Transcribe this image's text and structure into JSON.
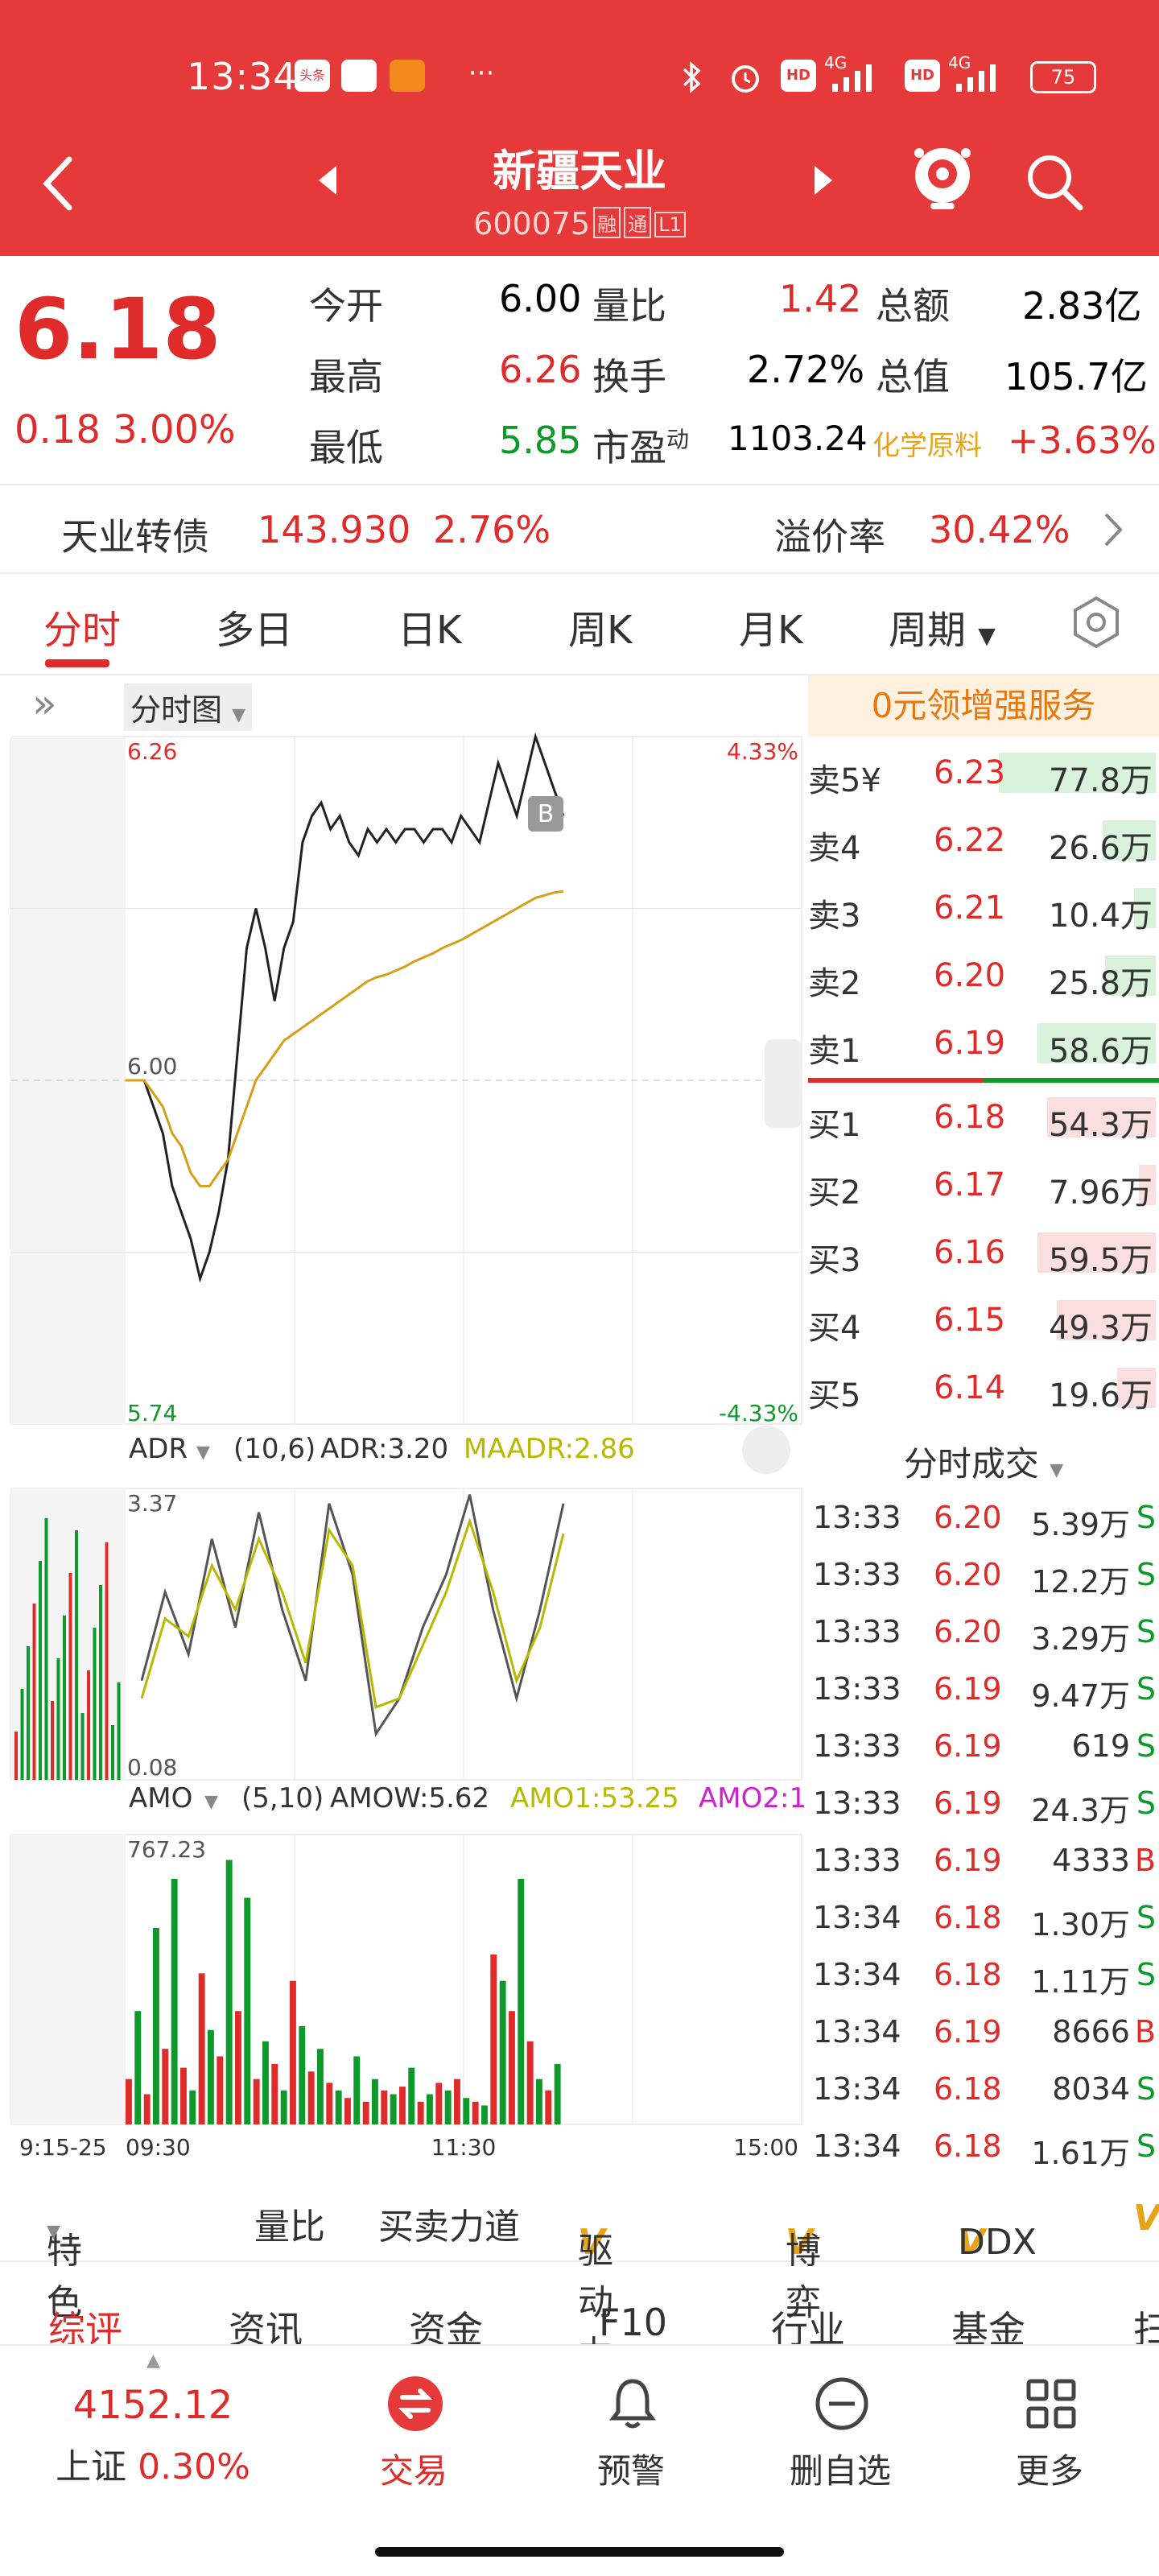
{
  "status_bar": {
    "time": "13:34",
    "app_badges": [
      "头条",
      "",
      ""
    ],
    "more": "···",
    "network_1": "4G",
    "network_2": "4G",
    "hd_1": "HD",
    "hd_2": "HD",
    "battery": "75"
  },
  "header": {
    "title": "新疆天业",
    "code": "600075",
    "tags": [
      "融",
      "通",
      "L1"
    ],
    "icons": [
      "back-icon",
      "prev-stock-icon",
      "next-stock-icon",
      "mascot-icon",
      "search-icon"
    ]
  },
  "quote": {
    "price": "6.18",
    "change": "0.18",
    "change_pct": "3.00%",
    "open_label": "今开",
    "open": "6.00",
    "high_label": "最高",
    "high": "6.26",
    "low_label": "最低",
    "low": "5.85",
    "vol_ratio_label": "量比",
    "vol_ratio": "1.42",
    "turnover_label": "换手",
    "turnover": "2.72%",
    "pe_label": "市盈",
    "pe_sup": "动",
    "pe": "1103.24",
    "amount_label": "总额",
    "amount": "2.83亿",
    "mktcap_label": "总值",
    "mktcap": "105.7亿",
    "sector_label": "化学原料",
    "sector_change": "+3.63%"
  },
  "bond": {
    "name": "天业转债",
    "price": "143.930",
    "change_pct": "2.76%",
    "premium_label": "溢价率",
    "premium": "30.42%"
  },
  "tabs": [
    "分时",
    "多日",
    "日K",
    "周K",
    "月K",
    "周期"
  ],
  "chart_controls": {
    "expand": "»",
    "chart_type": "分时图",
    "promo": "0元领增强服务"
  },
  "chart_data": [
    {
      "type": "line",
      "title": "分时图",
      "ylim": [
        5.74,
        6.26
      ],
      "y_labels": {
        "top": "6.26",
        "mid": "6.00",
        "bottom": "5.74"
      },
      "pct_labels": {
        "top": "4.33%",
        "bottom": "-4.33%"
      },
      "x_ticks": [
        "9:15-25",
        "09:30",
        "11:30",
        "15:00"
      ],
      "prev_close": 6.0,
      "series": [
        {
          "name": "price",
          "color": "#222222",
          "values": [
            6.0,
            6.0,
            6.0,
            5.98,
            5.96,
            5.92,
            5.9,
            5.88,
            5.85,
            5.87,
            5.9,
            5.94,
            6.02,
            6.1,
            6.13,
            6.1,
            6.06,
            6.1,
            6.12,
            6.18,
            6.2,
            6.21,
            6.19,
            6.2,
            6.18,
            6.17,
            6.19,
            6.18,
            6.19,
            6.18,
            6.19,
            6.19,
            6.18,
            6.19,
            6.19,
            6.18,
            6.2,
            6.19,
            6.18,
            6.21,
            6.24,
            6.22,
            6.2,
            6.23,
            6.26,
            6.24,
            6.22,
            6.2
          ]
        },
        {
          "name": "avg",
          "color": "#d4a017",
          "values": [
            6.0,
            6.0,
            6.0,
            5.99,
            5.98,
            5.96,
            5.95,
            5.93,
            5.92,
            5.92,
            5.93,
            5.94,
            5.96,
            5.98,
            6.0,
            6.01,
            6.02,
            6.03,
            6.035,
            6.04,
            6.045,
            6.05,
            6.055,
            6.06,
            6.065,
            6.07,
            6.075,
            6.078,
            6.08,
            6.083,
            6.086,
            6.09,
            6.093,
            6.096,
            6.1,
            6.103,
            6.106,
            6.11,
            6.114,
            6.118,
            6.122,
            6.126,
            6.13,
            6.134,
            6.138,
            6.14,
            6.142,
            6.143
          ]
        }
      ]
    },
    {
      "type": "line",
      "title": "ADR",
      "params": "(10,6)",
      "legend": [
        "ADR:3.20",
        "MAADR:2.86"
      ],
      "ylim": [
        0.08,
        3.37
      ],
      "y_labels": {
        "top": "3.37",
        "bottom": "0.08"
      },
      "series": [
        {
          "name": "ADR",
          "color": "#555555",
          "values": [
            1.2,
            2.2,
            1.5,
            2.8,
            1.8,
            3.1,
            2.0,
            1.2,
            3.2,
            2.4,
            0.6,
            1.0,
            1.8,
            2.4,
            3.3,
            2.0,
            1.0,
            2.0,
            3.2
          ]
        },
        {
          "name": "MAADR",
          "color": "#b8b800",
          "values": [
            1.0,
            1.9,
            1.7,
            2.5,
            2.0,
            2.8,
            2.2,
            1.4,
            2.9,
            2.5,
            0.9,
            1.0,
            1.6,
            2.2,
            3.0,
            2.2,
            1.2,
            1.8,
            2.86
          ]
        }
      ]
    },
    {
      "type": "bar",
      "title": "AMO",
      "params": "(5,10)",
      "legend": [
        "AMOW:5.62",
        "AMO1:53.25",
        "AMO2:1"
      ],
      "ylim": [
        0,
        767.23
      ],
      "y_labels": {
        "top": "767.23"
      },
      "values": [
        120,
        300,
        80,
        520,
        200,
        650,
        150,
        90,
        400,
        250,
        180,
        700,
        300,
        600,
        120,
        220,
        160,
        90,
        380,
        260,
        140,
        200,
        110,
        90,
        70,
        180,
        60,
        120,
        90,
        80,
        100,
        150,
        60,
        80,
        110,
        90,
        120,
        70,
        60,
        50,
        450,
        380,
        300,
        650,
        220,
        120,
        90,
        160
      ]
    }
  ],
  "orderbook": {
    "asks": [
      {
        "label": "卖5¥",
        "price": "6.23",
        "vol": "77.8万",
        "fill": 0.65
      },
      {
        "label": "卖4",
        "price": "6.22",
        "vol": "26.6万",
        "fill": 0.22
      },
      {
        "label": "卖3",
        "price": "6.21",
        "vol": "10.4万",
        "fill": 0.09
      },
      {
        "label": "卖2",
        "price": "6.20",
        "vol": "25.8万",
        "fill": 0.21
      },
      {
        "label": "卖1",
        "price": "6.19",
        "vol": "58.6万",
        "fill": 0.49
      }
    ],
    "bids": [
      {
        "label": "买1",
        "price": "6.18",
        "vol": "54.3万",
        "fill": 0.45
      },
      {
        "label": "买2",
        "price": "6.17",
        "vol": "7.96万",
        "fill": 0.07
      },
      {
        "label": "买3",
        "price": "6.16",
        "vol": "59.5万",
        "fill": 0.49
      },
      {
        "label": "买4",
        "price": "6.15",
        "vol": "49.3万",
        "fill": 0.41
      },
      {
        "label": "买5",
        "price": "6.14",
        "vol": "19.6万",
        "fill": 0.16
      }
    ],
    "trades_title": "分时成交",
    "trades": [
      {
        "time": "13:33",
        "price": "6.20",
        "vol": "5.39万",
        "side": "S"
      },
      {
        "time": "13:33",
        "price": "6.20",
        "vol": "12.2万",
        "side": "S"
      },
      {
        "time": "13:33",
        "price": "6.20",
        "vol": "3.29万",
        "side": "S"
      },
      {
        "time": "13:33",
        "price": "6.19",
        "vol": "9.47万",
        "side": "S"
      },
      {
        "time": "13:33",
        "price": "6.19",
        "vol": "619",
        "side": "S"
      },
      {
        "time": "13:33",
        "price": "6.19",
        "vol": "24.3万",
        "side": "S"
      },
      {
        "time": "13:33",
        "price": "6.19",
        "vol": "4333",
        "side": "B"
      },
      {
        "time": "13:34",
        "price": "6.18",
        "vol": "1.30万",
        "side": "S"
      },
      {
        "time": "13:34",
        "price": "6.18",
        "vol": "1.11万",
        "side": "S"
      },
      {
        "time": "13:34",
        "price": "6.19",
        "vol": "8666",
        "side": "B"
      },
      {
        "time": "13:34",
        "price": "6.18",
        "vol": "8034",
        "side": "S"
      },
      {
        "time": "13:34",
        "price": "6.18",
        "vol": "1.61万",
        "side": "S"
      }
    ]
  },
  "indicator_strip": [
    "特色",
    "量比",
    "买卖力道",
    "驱动力",
    "博弈",
    "DDX",
    "V"
  ],
  "subnav": [
    "综评",
    "资讯",
    "资金",
    "F10",
    "行业",
    "基金",
    "扫"
  ],
  "bottom": {
    "index_value": "4152.12",
    "index_name": "上证",
    "index_change": "0.30%",
    "items": [
      {
        "label": "交易",
        "icon": "trade-icon"
      },
      {
        "label": "预警",
        "icon": "bell-icon"
      },
      {
        "label": "删自选",
        "icon": "remove-watchlist-icon"
      },
      {
        "label": "更多",
        "icon": "grid-icon"
      }
    ]
  }
}
